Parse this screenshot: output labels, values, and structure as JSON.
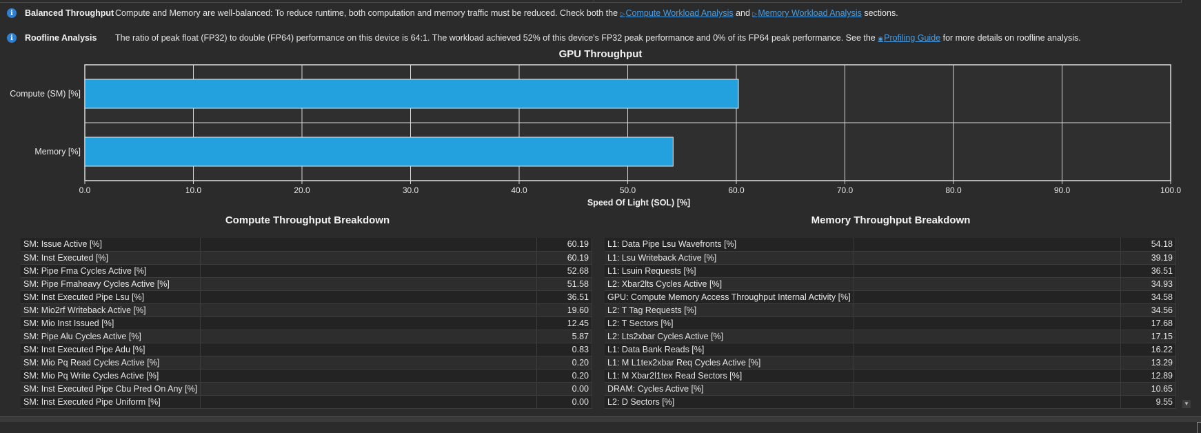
{
  "rules": [
    {
      "title": "Balanced Throughput",
      "text_before": "Compute and Memory are well-balanced: To reduce runtime, both computation and memory traffic must be reduced. Check both the",
      "link1": "Compute Workload Analysis",
      "text_mid": "and",
      "link2": "Memory Workload Analysis",
      "text_after": "sections."
    },
    {
      "title": "Roofline Analysis",
      "text_before": "The ratio of peak float (FP32) to double (FP64) performance on this device is 64:1. The workload achieved 52% of this device's FP32 peak performance and 0% of its FP64 peak performance. See the",
      "link1": "Profiling Guide",
      "text_after": "for more details on roofline analysis."
    }
  ],
  "chart_data": {
    "type": "bar",
    "orientation": "horizontal",
    "title": "GPU Throughput",
    "xlabel": "Speed Of Light (SOL) [%]",
    "ylabel": "",
    "categories": [
      "Compute (SM) [%]",
      "Memory [%]"
    ],
    "values": [
      60.19,
      54.18
    ],
    "xlim": [
      0,
      100
    ],
    "xticks": [
      "0.0",
      "10.0",
      "20.0",
      "30.0",
      "40.0",
      "50.0",
      "60.0",
      "70.0",
      "80.0",
      "90.0",
      "100.0"
    ],
    "grid": true,
    "bar_color": "#23a0de"
  },
  "compute_breakdown": {
    "title": "Compute Throughput Breakdown",
    "rows": [
      [
        "SM: Issue Active [%]",
        "60.19"
      ],
      [
        "SM: Inst Executed [%]",
        "60.19"
      ],
      [
        "SM: Pipe Fma Cycles Active [%]",
        "52.68"
      ],
      [
        "SM: Pipe Fmaheavy Cycles Active [%]",
        "51.58"
      ],
      [
        "SM: Inst Executed Pipe Lsu [%]",
        "36.51"
      ],
      [
        "SM: Mio2rf Writeback Active [%]",
        "19.60"
      ],
      [
        "SM: Mio Inst Issued [%]",
        "12.45"
      ],
      [
        "SM: Pipe Alu Cycles Active [%]",
        "5.87"
      ],
      [
        "SM: Inst Executed Pipe Adu [%]",
        "0.83"
      ],
      [
        "SM: Mio Pq Read Cycles Active [%]",
        "0.20"
      ],
      [
        "SM: Mio Pq Write Cycles Active [%]",
        "0.20"
      ],
      [
        "SM: Inst Executed Pipe Cbu Pred On Any [%]",
        "0.00"
      ],
      [
        "SM: Inst Executed Pipe Uniform [%]",
        "0.00"
      ]
    ]
  },
  "memory_breakdown": {
    "title": "Memory Throughput Breakdown",
    "rows": [
      [
        "L1: Data Pipe Lsu Wavefronts [%]",
        "54.18"
      ],
      [
        "L1: Lsu Writeback Active [%]",
        "39.19"
      ],
      [
        "L1: Lsuin Requests [%]",
        "36.51"
      ],
      [
        "L2: Xbar2lts Cycles Active [%]",
        "34.93"
      ],
      [
        "GPU: Compute Memory Access Throughput Internal Activity [%]",
        "34.58"
      ],
      [
        "L2: T Tag Requests [%]",
        "34.56"
      ],
      [
        "L2: T Sectors [%]",
        "17.68"
      ],
      [
        "L2: Lts2xbar Cycles Active [%]",
        "17.15"
      ],
      [
        "L1: Data Bank Reads [%]",
        "16.22"
      ],
      [
        "L1: M L1tex2xbar Req Cycles Active [%]",
        "13.29"
      ],
      [
        "L1: M Xbar2l1tex Read Sectors [%]",
        "12.89"
      ],
      [
        "DRAM: Cycles Active [%]",
        "10.65"
      ],
      [
        "L2: D Sectors [%]",
        "9.55"
      ]
    ]
  }
}
